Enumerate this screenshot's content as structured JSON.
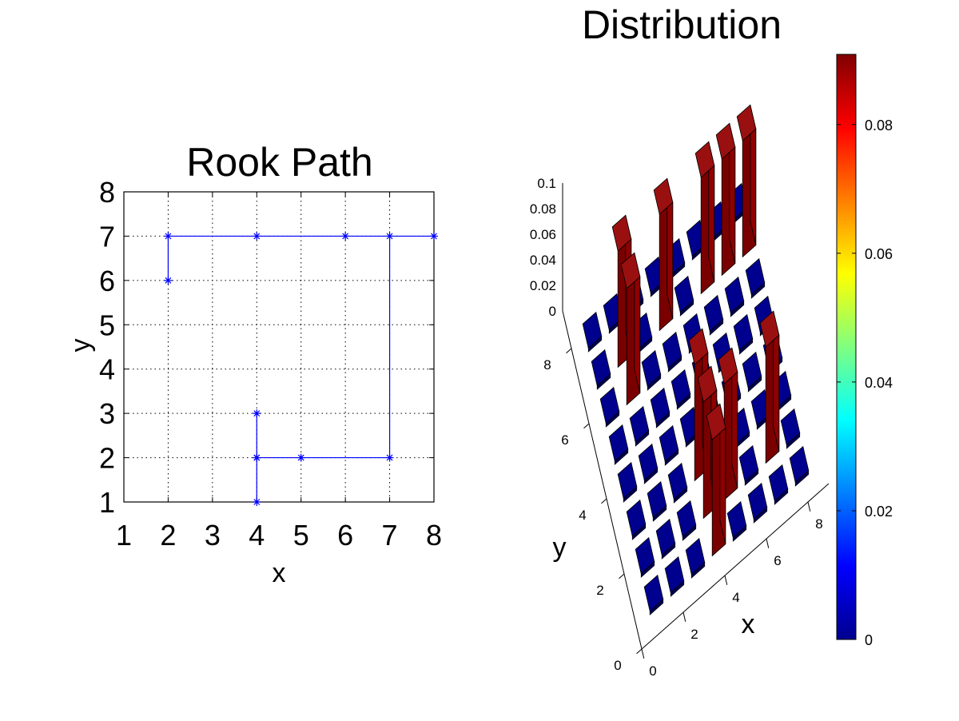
{
  "chart_data": [
    {
      "type": "line",
      "title": "Rook Path",
      "xlabel": "x",
      "ylabel": "y",
      "xlim": [
        1,
        8
      ],
      "ylim": [
        1,
        8
      ],
      "xticks": [
        "1",
        "2",
        "3",
        "4",
        "5",
        "6",
        "7",
        "8"
      ],
      "yticks": [
        "1",
        "2",
        "3",
        "4",
        "5",
        "6",
        "7",
        "8"
      ],
      "grid": true,
      "marker": "*",
      "series": [
        {
          "color": "#0000ff",
          "points": [
            [
              4,
              1
            ],
            [
              4,
              2
            ],
            [
              4,
              3
            ],
            [
              4,
              2
            ],
            [
              5,
              2
            ],
            [
              7,
              2
            ],
            [
              7,
              7
            ],
            [
              8,
              7
            ],
            [
              6,
              7
            ],
            [
              4,
              7
            ],
            [
              2,
              7
            ],
            [
              2,
              6
            ]
          ]
        }
      ]
    },
    {
      "type": "bar3d",
      "title": "Distribution",
      "xlabel": "x",
      "ylabel": "y",
      "zlim": [
        0,
        0.1
      ],
      "xticks": [
        "0",
        "2",
        "4",
        "6",
        "8"
      ],
      "yticks": [
        "0",
        "2",
        "4",
        "6",
        "8"
      ],
      "zticks": [
        "0",
        "0.02",
        "0.04",
        "0.06",
        "0.08",
        "0.1"
      ],
      "colorbar": {
        "ticks": [
          "0",
          "0.02",
          "0.04",
          "0.06",
          "0.08"
        ],
        "range": [
          0,
          0.0909
        ],
        "colormap": "jet"
      },
      "grid_size": 8,
      "tall_cells": [
        [
          2,
          6
        ],
        [
          2,
          7
        ],
        [
          4,
          1
        ],
        [
          4,
          2
        ],
        [
          4,
          3
        ],
        [
          4,
          7
        ],
        [
          5,
          2
        ],
        [
          6,
          7
        ],
        [
          7,
          2
        ],
        [
          7,
          7
        ],
        [
          8,
          7
        ]
      ],
      "tall_value": 0.0909,
      "low_value": 0
    }
  ]
}
